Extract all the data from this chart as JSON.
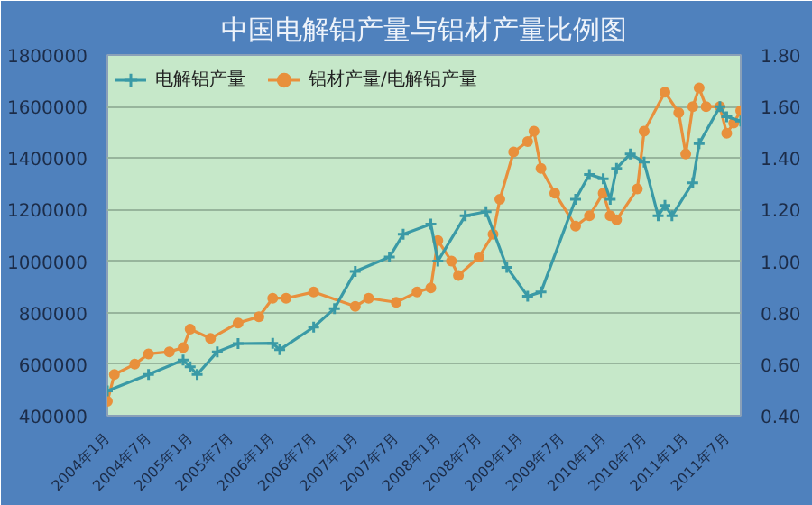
{
  "chart_data": {
    "type": "line",
    "title": "中国电解铝产量与铝材产量比例图",
    "series": [
      {
        "name": "电解铝产量",
        "color": "#3a9aa6",
        "marker": "cross",
        "x": [
          "2004-01",
          "2004-07",
          "2004-12",
          "2005-01",
          "2005-02",
          "2005-05",
          "2005-08",
          "2006-01",
          "2006-02",
          "2006-07",
          "2006-10",
          "2007-01",
          "2007-06",
          "2007-08",
          "2007-12",
          "2008-01",
          "2008-05",
          "2008-08",
          "2008-11",
          "2009-02",
          "2009-04",
          "2009-09",
          "2009-11",
          "2010-01",
          "2010-02",
          "2010-03",
          "2010-05",
          "2010-07",
          "2010-09",
          "2010-10",
          "2010-11",
          "2011-02",
          "2011-03",
          "2011-06",
          "2011-07",
          "2011-09"
        ],
        "values": [
          496000,
          560000,
          616000,
          590000,
          560000,
          648000,
          680000,
          681000,
          656000,
          744000,
          816000,
          960000,
          1016000,
          1104000,
          1144000,
          1000000,
          1176000,
          1192000,
          976000,
          864000,
          880000,
          1240000,
          1336000,
          1320000,
          1240000,
          1360000,
          1416000,
          1384000,
          1176000,
          1216000,
          1176000,
          1304000,
          1456000,
          1600000,
          1560000,
          1544000
        ]
      },
      {
        "name": "铝材产量/电解铝产量",
        "color": "#e8903c",
        "marker": "circle",
        "axis": "y2",
        "x": [
          "2004-01",
          "2004-02",
          "2004-05",
          "2004-07",
          "2004-10",
          "2004-12",
          "2005-01",
          "2005-04",
          "2005-08",
          "2005-11",
          "2006-01",
          "2006-03",
          "2006-07",
          "2007-01",
          "2007-03",
          "2007-07",
          "2007-10",
          "2007-12",
          "2008-01",
          "2008-03",
          "2008-04",
          "2008-07",
          "2008-09",
          "2008-10",
          "2008-12",
          "2009-02",
          "2009-03",
          "2009-04",
          "2009-06",
          "2009-09",
          "2009-11",
          "2010-01",
          "2010-02",
          "2010-03",
          "2010-06",
          "2010-07",
          "2010-10",
          "2010-12",
          "2011-01",
          "2011-02",
          "2011-03",
          "2011-04",
          "2011-06",
          "2011-07",
          "2011-08",
          "2011-09"
        ],
        "values": [
          0.456,
          0.56,
          0.6,
          0.64,
          0.648,
          0.664,
          0.736,
          0.7,
          0.76,
          0.784,
          0.856,
          0.856,
          0.88,
          0.824,
          0.856,
          0.84,
          0.88,
          0.896,
          1.08,
          1.0,
          0.944,
          1.016,
          1.104,
          1.24,
          1.424,
          1.464,
          1.504,
          1.36,
          1.264,
          1.136,
          1.176,
          1.264,
          1.176,
          1.16,
          1.28,
          1.504,
          1.656,
          1.576,
          1.416,
          1.6,
          1.672,
          1.6,
          1.6,
          1.496,
          1.536,
          1.584
        ]
      }
    ],
    "xlim": [
      "2004-01",
      "2011-09"
    ],
    "xticks": [
      {
        "value": "2004-01",
        "label": "2004年1月"
      },
      {
        "value": "2004-07",
        "label": "2004年7月"
      },
      {
        "value": "2005-01",
        "label": "2005年1月"
      },
      {
        "value": "2005-07",
        "label": "2005年7月"
      },
      {
        "value": "2006-01",
        "label": "2006年1月"
      },
      {
        "value": "2006-07",
        "label": "2006年7月"
      },
      {
        "value": "2007-01",
        "label": "2007年1月"
      },
      {
        "value": "2007-07",
        "label": "2007年7月"
      },
      {
        "value": "2008-01",
        "label": "2008年1月"
      },
      {
        "value": "2008-07",
        "label": "2008年7月"
      },
      {
        "value": "2009-01",
        "label": "2009年1月"
      },
      {
        "value": "2009-07",
        "label": "2009年7月"
      },
      {
        "value": "2010-01",
        "label": "2010年1月"
      },
      {
        "value": "2010-07",
        "label": "2010年7月"
      },
      {
        "value": "2011-01",
        "label": "2011年1月"
      },
      {
        "value": "2011-07",
        "label": "2011年7月"
      }
    ],
    "ylim": [
      400000,
      1800000
    ],
    "yticks": [
      400000,
      600000,
      800000,
      1000000,
      1200000,
      1400000,
      1600000,
      1800000
    ],
    "y2lim": [
      0.4,
      1.8
    ],
    "y2ticks": [
      {
        "value": 0.4,
        "label": "0.40"
      },
      {
        "value": 0.6,
        "label": "0.60"
      },
      {
        "value": 0.8,
        "label": "0.80"
      },
      {
        "value": 1.0,
        "label": "1.00"
      },
      {
        "value": 1.2,
        "label": "1.20"
      },
      {
        "value": 1.4,
        "label": "1.40"
      },
      {
        "value": 1.6,
        "label": "1.60"
      },
      {
        "value": 1.8,
        "label": "1.80"
      }
    ],
    "grid": "y",
    "legend": "top left",
    "line_style": "solid"
  }
}
